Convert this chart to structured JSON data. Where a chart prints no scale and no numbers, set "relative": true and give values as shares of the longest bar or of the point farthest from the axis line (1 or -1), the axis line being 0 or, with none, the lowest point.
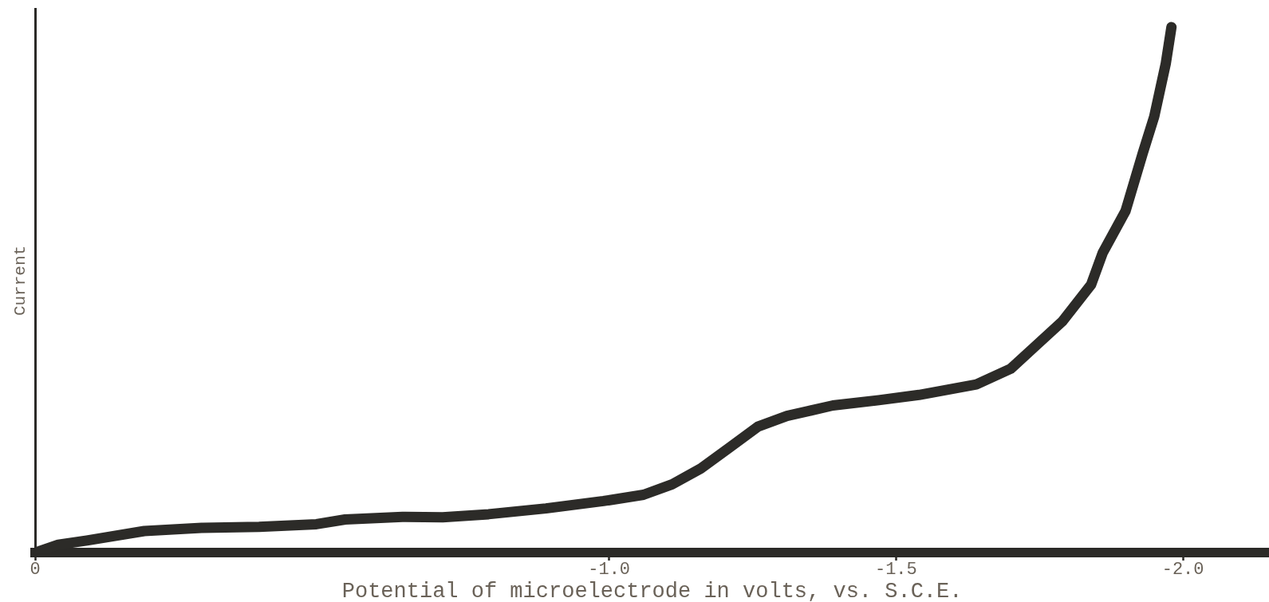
{
  "chart_data": {
    "type": "line",
    "xlabel": "Potential of microelectrode in volts, vs. S.C.E.",
    "ylabel": "Current",
    "x": [
      0,
      -0.04,
      -0.09,
      -0.19,
      -0.29,
      -0.39,
      -0.49,
      -0.54,
      -0.64,
      -0.71,
      -0.79,
      -0.89,
      -0.99,
      -1.06,
      -1.11,
      -1.16,
      -1.21,
      -1.26,
      -1.31,
      -1.39,
      -1.47,
      -1.54,
      -1.64,
      -1.7,
      -1.74,
      -1.79,
      -1.84,
      -1.86,
      -1.9,
      -1.93,
      -1.95,
      -1.97,
      -1.98
    ],
    "values": [
      0,
      0.015,
      0.023,
      0.041,
      0.047,
      0.049,
      0.054,
      0.063,
      0.068,
      0.067,
      0.073,
      0.084,
      0.098,
      0.11,
      0.13,
      0.16,
      0.2,
      0.24,
      0.26,
      0.28,
      0.29,
      0.3,
      0.32,
      0.35,
      0.39,
      0.44,
      0.51,
      0.57,
      0.65,
      0.76,
      0.83,
      0.93,
      1.0
    ],
    "color": "#2c2b28",
    "relative": true,
    "xlim": [
      0,
      -2.15
    ],
    "xticks": [
      0,
      {
        "value": -1,
        "label": "-1.0"
      },
      {
        "value": -1.5,
        "label": "-1.5"
      },
      {
        "value": -2,
        "label": "-2.0"
      }
    ],
    "marker": "none",
    "line_style": "solid"
  }
}
